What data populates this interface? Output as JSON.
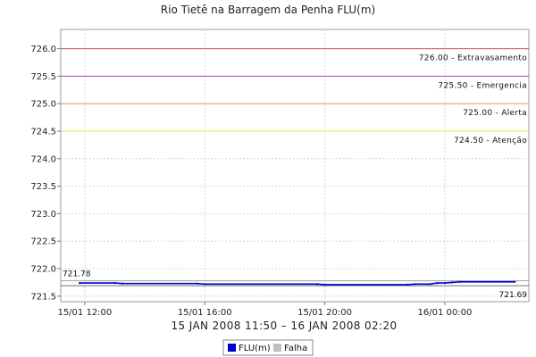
{
  "chart_data": {
    "type": "line",
    "title": "Rio Tietê na Barragem da Penha FLU(m)",
    "time_range_label": "15 JAN 2008 11:50 – 16 JAN 2008 02:20",
    "xlabel": "",
    "ylabel": "",
    "ylim": [
      721.4,
      726.35
    ],
    "xlim_hours": [
      11.2,
      26.8
    ],
    "grid": true,
    "legend_position": "bottom-center",
    "y_ticks": [
      "721.5",
      "722.0",
      "722.5",
      "723.0",
      "723.5",
      "724.0",
      "724.5",
      "725.0",
      "725.5",
      "726.0"
    ],
    "x_ticks": [
      {
        "label": "15/01 12:00",
        "hour": 12
      },
      {
        "label": "15/01 16:00",
        "hour": 16
      },
      {
        "label": "15/01 20:00",
        "hour": 20
      },
      {
        "label": "16/01 00:00",
        "hour": 24
      }
    ],
    "thresholds": [
      {
        "value": 726.0,
        "label": "726.00 - Extravasamento",
        "color": "#c0504d"
      },
      {
        "value": 725.5,
        "label": "725.50 - Emergencia",
        "color": "#cc33cc"
      },
      {
        "value": 725.0,
        "label": "725.00 - Alerta",
        "color": "#f0a030"
      },
      {
        "value": 724.5,
        "label": "724.50 - Atenção",
        "color": "#e8e040"
      }
    ],
    "max_line": {
      "value": 721.78,
      "label": "721.78"
    },
    "min_line": {
      "value": 721.69,
      "label": "721.69"
    },
    "series": [
      {
        "name": "FLU(m)",
        "color": "#0000cc",
        "x": [
          11.83,
          13.0,
          13.25,
          15.75,
          16.0,
          19.75,
          20.0,
          22.75,
          23.0,
          23.5,
          23.75,
          24.0,
          24.25,
          24.5,
          26.33
        ],
        "y": [
          721.74,
          721.74,
          721.73,
          721.73,
          721.72,
          721.72,
          721.71,
          721.71,
          721.72,
          721.72,
          721.74,
          721.74,
          721.75,
          721.76,
          721.76
        ]
      }
    ],
    "legend": [
      {
        "name": "FLU(m)",
        "color": "#0000cc"
      },
      {
        "name": "Falha",
        "color": "#c0c0c0"
      }
    ]
  }
}
